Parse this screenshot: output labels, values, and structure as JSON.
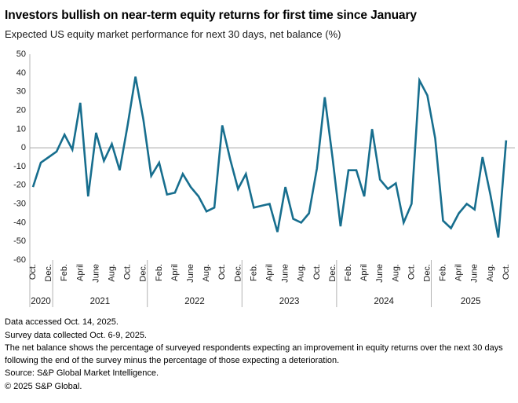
{
  "header": {
    "title": "Investors bullish on near-term equity returns for first time since January",
    "subtitle": "Expected US equity market performance for next 30 days, net balance (%)"
  },
  "chart_data": {
    "type": "line",
    "title": "Investors bullish on near-term equity returns for first time since January",
    "subtitle": "Expected US equity market performance for next 30 days, net balance (%)",
    "ylabel": "Net balance (%)",
    "ylim": [
      -60,
      50
    ],
    "y_ticks": [
      50,
      40,
      30,
      20,
      10,
      0,
      -10,
      -20,
      -30,
      -40,
      -50,
      -60
    ],
    "grid": "zero baseline only",
    "legend": "none",
    "line_color": "#176E8E",
    "x": [
      "Oct 2020",
      "Nov 2020",
      "Dec 2020",
      "Jan 2021",
      "Feb 2021",
      "Mar 2021",
      "Apr 2021",
      "May 2021",
      "Jun 2021",
      "Jul 2021",
      "Aug 2021",
      "Sep 2021",
      "Oct 2021",
      "Nov 2021",
      "Dec 2021",
      "Jan 2022",
      "Feb 2022",
      "Mar 2022",
      "Apr 2022",
      "May 2022",
      "Jun 2022",
      "Jul 2022",
      "Aug 2022",
      "Sep 2022",
      "Oct 2022",
      "Nov 2022",
      "Dec 2022",
      "Jan 2023",
      "Feb 2023",
      "Mar 2023",
      "Apr 2023",
      "May 2023",
      "Jun 2023",
      "Jul 2023",
      "Aug 2023",
      "Sep 2023",
      "Oct 2023",
      "Nov 2023",
      "Dec 2023",
      "Jan 2024",
      "Feb 2024",
      "Mar 2024",
      "Apr 2024",
      "May 2024",
      "Jun 2024",
      "Jul 2024",
      "Aug 2024",
      "Sep 2024",
      "Oct 2024",
      "Nov 2024",
      "Dec 2024",
      "Jan 2025",
      "Feb 2025",
      "Mar 2025",
      "Apr 2025",
      "May 2025",
      "Jun 2025",
      "Jul 2025",
      "Aug 2025",
      "Sep 2025",
      "Oct 2025"
    ],
    "values": [
      -21,
      -8,
      -5,
      -2,
      7,
      -1,
      24,
      -26,
      8,
      -7,
      2,
      -12,
      12,
      38,
      15,
      -15,
      -8,
      -25,
      -24,
      -14,
      -21,
      -26,
      -34,
      -32,
      12,
      -6,
      -22,
      -14,
      -32,
      -31,
      -30,
      -45,
      -21,
      -38,
      -40,
      -35,
      -11,
      27,
      -6,
      -42,
      -12,
      -12,
      -26,
      10,
      -17,
      -22,
      -19,
      -40,
      -30,
      36,
      28,
      5,
      -39,
      -43,
      -35,
      -30,
      -33,
      -5,
      -25,
      -48,
      4
    ],
    "x_tick_labels": [
      "Oct.",
      "Dec.",
      "Feb.",
      "April",
      "June",
      "Aug.",
      "Oct.",
      "Dec.",
      "Feb.",
      "April",
      "June",
      "Aug.",
      "Oct.",
      "Dec.",
      "Feb.",
      "April",
      "June",
      "Aug.",
      "Oct.",
      "Dec.",
      "Feb.",
      "April",
      "June",
      "Aug.",
      "Oct.",
      "Dec.",
      "Feb.",
      "April",
      "June",
      "Aug.",
      "Oct."
    ],
    "year_labels": [
      "2020",
      "2021",
      "2022",
      "2023",
      "2024",
      "2025"
    ],
    "axis_color": "#b3b3b3",
    "zero_line_color": "#a6a6a6",
    "tick_text_color": "#1a1a1a"
  },
  "footer": {
    "lines": [
      "Data accessed Oct. 14, 2025.",
      "Survey data collected Oct. 6-9, 2025.",
      "The net balance shows the percentage of surveyed respondents expecting an improvement in equity returns over the next 30 days following the end of the survey minus the percentage of those expecting a deterioration.",
      "Source: S&P Global Market Intelligence.",
      "© 2025 S&P Global."
    ]
  }
}
